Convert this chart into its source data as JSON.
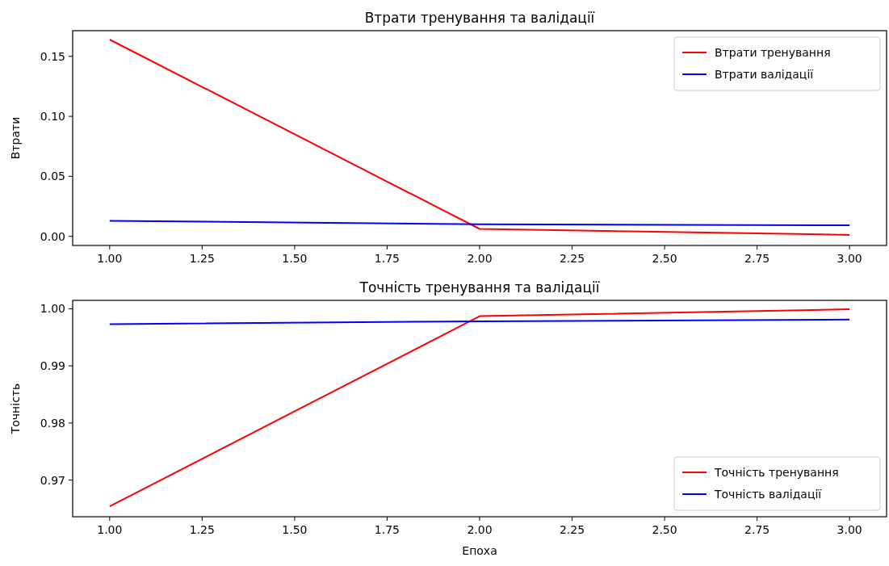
{
  "chart_data": [
    {
      "type": "line",
      "title": "Втрати тренування та валідації",
      "ylabel": "Втрати",
      "x": [
        1,
        2,
        3
      ],
      "series": [
        {
          "name": "Втрати тренування",
          "color": "#ff0000",
          "values": [
            0.164,
            0.0062,
            0.0012
          ]
        },
        {
          "name": "Втрати валідації",
          "color": "#0000ff",
          "values": [
            0.013,
            0.0101,
            0.0092
          ]
        }
      ],
      "xlim": [
        0.9,
        3.1
      ],
      "ylim": [
        -0.0076,
        0.1714
      ],
      "xticks": [
        {
          "value": 1,
          "label": "1.00"
        },
        1.25,
        {
          "value": 1.5,
          "label": "1.50"
        },
        1.75,
        {
          "value": 2,
          "label": "2.00"
        },
        2.25,
        {
          "value": 2.5,
          "label": "2.50"
        },
        2.75,
        {
          "value": 3,
          "label": "3.00"
        }
      ],
      "yticks": [
        {
          "value": 0,
          "label": "0.00"
        },
        0.05,
        {
          "value": 0.1,
          "label": "0.10"
        },
        0.15
      ],
      "legend": "top right",
      "grid": false
    },
    {
      "type": "line",
      "title": "Точність тренування та валідації",
      "xlabel": "Епоха",
      "ylabel": "Точність",
      "x": [
        1,
        2,
        3
      ],
      "series": [
        {
          "name": "Точність тренування",
          "color": "#ff0000",
          "values": [
            0.9654,
            0.9987,
            0.9999
          ]
        },
        {
          "name": "Точність валідації",
          "color": "#0000ff",
          "values": [
            0.9973,
            0.9978,
            0.9981
          ]
        }
      ],
      "xlim": [
        0.9,
        3.1
      ],
      "ylim": [
        0.96358,
        1.00147
      ],
      "xticks": [
        {
          "value": 1,
          "label": "1.00"
        },
        1.25,
        {
          "value": 1.5,
          "label": "1.50"
        },
        1.75,
        {
          "value": 2,
          "label": "2.00"
        },
        2.25,
        {
          "value": 2.5,
          "label": "2.50"
        },
        2.75,
        {
          "value": 3,
          "label": "3.00"
        }
      ],
      "yticks": [
        0.97,
        0.98,
        0.99,
        {
          "value": 1,
          "label": "1.00"
        }
      ],
      "legend": "bottom right",
      "grid": false
    }
  ]
}
